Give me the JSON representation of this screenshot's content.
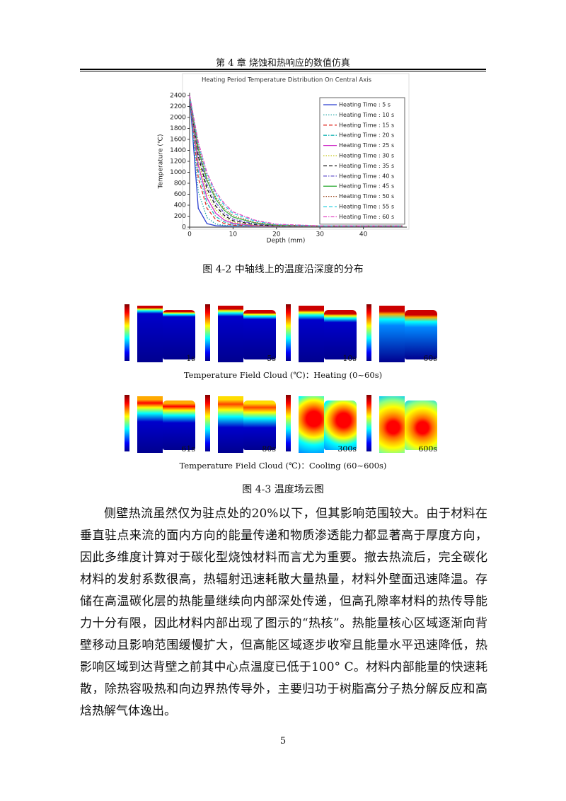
{
  "header": "第 4 章  烧蚀和热响应的数值仿真",
  "chart_data": {
    "type": "line",
    "title": "Heating Period Temperature Distribution On Central Axis",
    "x_label": "Depth (mm)",
    "y_label": "Temperature (℃)",
    "x": [
      0,
      2,
      4,
      6,
      8,
      10,
      15,
      20,
      30,
      49
    ],
    "xlim": [
      0,
      50
    ],
    "xticks": [
      0,
      10,
      20,
      30,
      40
    ],
    "ylim": [
      0,
      2400
    ],
    "yticks": [
      0,
      200,
      400,
      600,
      800,
      1000,
      1200,
      1400,
      1600,
      1800,
      2000,
      2200,
      2400
    ],
    "grid": false,
    "legend": "upper right",
    "series": [
      {
        "name": "Heating Time : 5 s",
        "color": "#2b3fd0",
        "dash": "solid",
        "values": [
          2400,
          342,
          64,
          26,
          20,
          20,
          20,
          20,
          20,
          20
        ]
      },
      {
        "name": "Heating Time : 10 s",
        "color": "#22a7a7",
        "dash": "dotted",
        "values": [
          2400,
          647,
          173,
          58,
          31,
          23,
          20,
          20,
          20,
          20
        ]
      },
      {
        "name": "Heating Time : 15 s",
        "color": "#e0302a",
        "dash": "dashed",
        "values": [
          2400,
          896,
          344,
          138,
          64,
          36,
          21,
          20,
          20,
          20
        ]
      },
      {
        "name": "Heating Time : 20 s",
        "color": "#20b8b8",
        "dash": "dashdot",
        "values": [
          2400,
          1017,
          437,
          195,
          94,
          51,
          23,
          20,
          20,
          20
        ]
      },
      {
        "name": "Heating Time : 25 s",
        "color": "#d030c8",
        "dash": "solid",
        "values": [
          2400,
          1129,
          531,
          255,
          128,
          70,
          27,
          20,
          20,
          20
        ]
      },
      {
        "name": "Heating Time : 30 s",
        "color": "#c8c820",
        "dash": "dotted",
        "values": [
          2400,
          1216,
          622,
          320,
          167,
          90,
          35,
          21,
          20,
          20
        ]
      },
      {
        "name": "Heating Time : 35 s",
        "color": "#111111",
        "dash": "dashed",
        "values": [
          2400,
          1294,
          703,
          385,
          212,
          117,
          45,
          24,
          20,
          20
        ]
      },
      {
        "name": "Heating Time : 40 s",
        "color": "#6a5acd",
        "dash": "dashdot",
        "values": [
          2400,
          1360,
          781,
          448,
          258,
          146,
          58,
          28,
          20,
          20
        ]
      },
      {
        "name": "Heating Time : 45 s",
        "color": "#3cb043",
        "dash": "solid",
        "values": [
          2400,
          1427,
          855,
          512,
          307,
          183,
          78,
          32,
          21,
          20
        ]
      },
      {
        "name": "Heating Time : 50 s",
        "color": "#a0522d",
        "dash": "dotted",
        "values": [
          2400,
          1463,
          895,
          551,
          342,
          210,
          87,
          36,
          21,
          20
        ]
      },
      {
        "name": "Heating Time : 55 s",
        "color": "#30d0e0",
        "dash": "dashed",
        "values": [
          2400,
          1519,
          953,
          610,
          394,
          250,
          111,
          46,
          22,
          20
        ]
      },
      {
        "name": "Heating Time : 60 s",
        "color": "#e040c0",
        "dash": "dashdot",
        "values": [
          2400,
          1548,
          990,
          646,
          430,
          278,
          127,
          53,
          23,
          20
        ]
      }
    ]
  },
  "figure_1": {
    "caption": "图 4-2  中轴线上的温度沿深度的分布"
  },
  "figure_2": {
    "panel_labels": [
      "1s",
      "5s",
      "10s",
      "60s",
      "61s",
      "80s",
      "300s",
      "600s"
    ],
    "row_captions": [
      "Temperature Field Cloud (℃)：Heating (0~60s)",
      "Temperature Field Cloud (℃)：Cooling (60~600s)"
    ],
    "caption": "图 4-3  温度场云图"
  },
  "body": {
    "paragraph": "侧壁热流虽然仅为驻点处的20%以下，但其影响范围较大。由于材料在垂直驻点来流的面内方向的能量传递和物质渗透能力都显著高于厚度方向，因此多维度计算对于碳化型烧蚀材料而言尤为重要。撤去热流后，完全碳化材料的发射系数很高，热辐射迅速耗散大量热量，材料外壁面迅速降温。存储在高温碳化层的热能量继续向内部深处传递，但高孔隙率材料的热传导能力十分有限，因此材料内部出现了图示的“热核”。热能量核心区域逐渐向背壁移动且影响范围缓慢扩大，但高能区域逐步收窄且能量水平迅速降低，热影响区域到达背壁之前其中心点温度已低于100° C。材料内部能量的快速耗散，除热容吸热和向边界热传导外，主要归功于树脂高分子热分解反应和高焓热解气体逸出。"
  },
  "page_number": "5"
}
